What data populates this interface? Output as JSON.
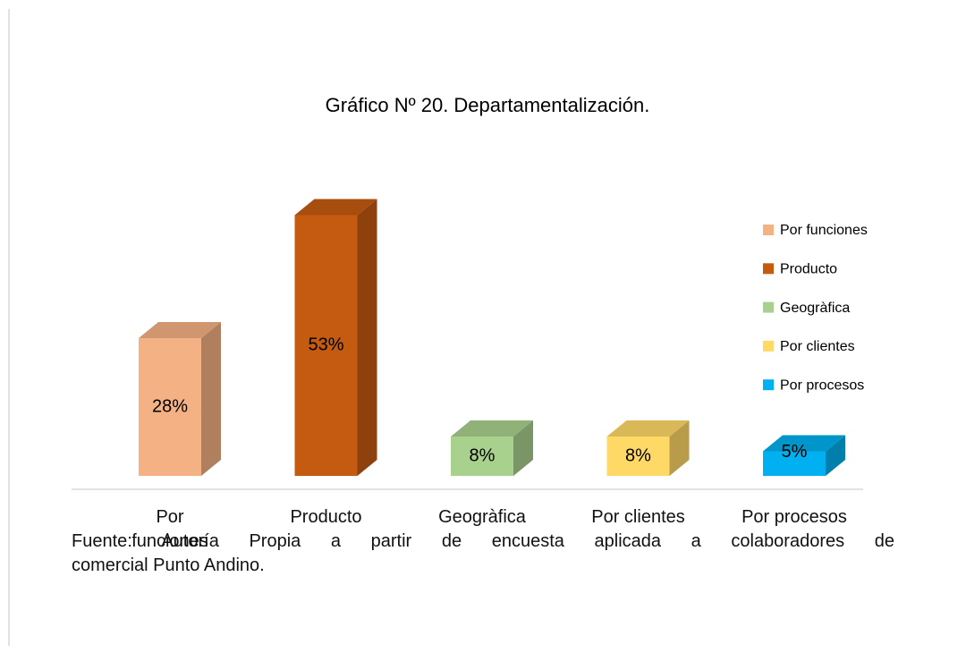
{
  "chart_data": {
    "type": "bar3d",
    "title": "Gráfico Nº 20. Departamentalización.",
    "categories": [
      "Por funciones",
      "Producto",
      "Geogràfica",
      "Por clientes",
      "Por procesos"
    ],
    "values": [
      28,
      53,
      8,
      8,
      5
    ],
    "value_labels": [
      "28%",
      "53%",
      "8%",
      "8%",
      "5%"
    ],
    "colors": [
      "#f4b183",
      "#c55a11",
      "#a9d18e",
      "#ffd966",
      "#00b0f0"
    ],
    "legend": "right"
  },
  "source": {
    "lines": [
      "Fuente:  Autoría Propia a partir de encuesta aplicada a colaboradores  de",
      "comercial Punto Andino."
    ]
  }
}
